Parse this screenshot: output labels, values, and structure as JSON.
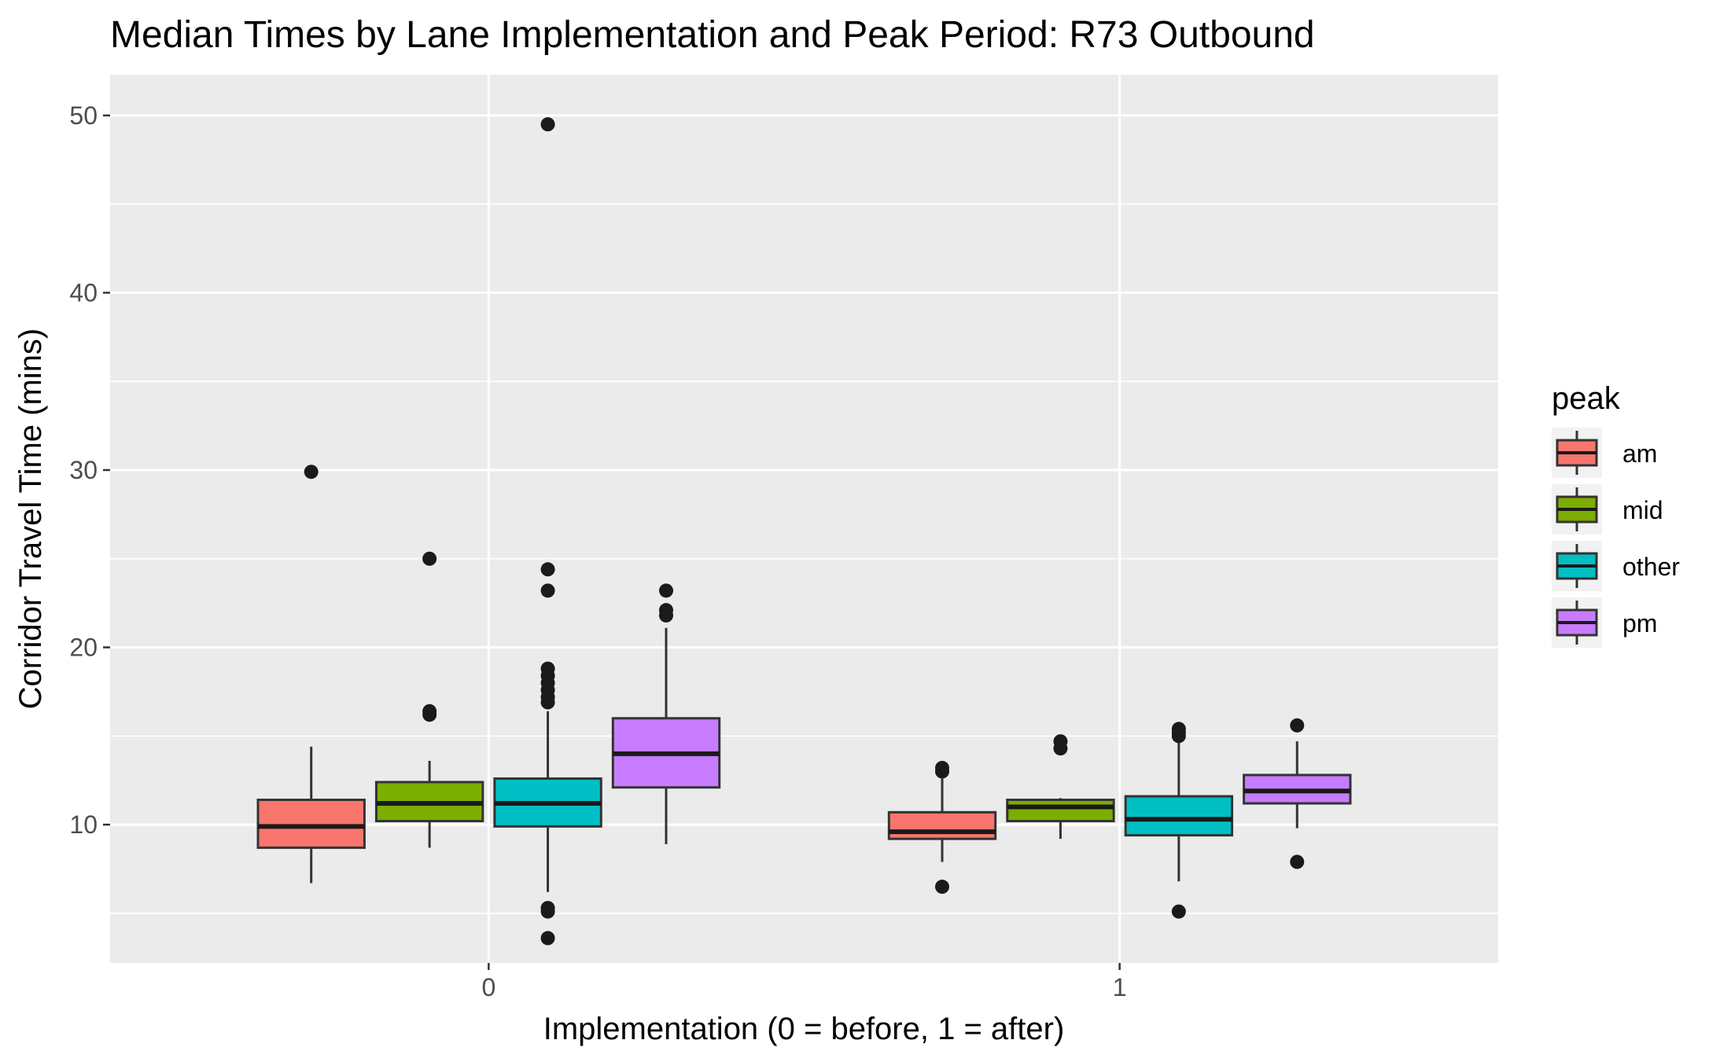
{
  "chart_data": {
    "type": "boxplot",
    "title": "Median Times by Lane Implementation and Peak Period: R73 Outbound",
    "xlabel": "Implementation (0 = before, 1 = after)",
    "ylabel": "Corridor Travel Time (mins)",
    "ylim": [
      2.2,
      52.3
    ],
    "y_ticks": [
      10,
      20,
      30,
      40,
      50
    ],
    "y_tick_labels": [
      "10",
      "20",
      "30",
      "40",
      "50"
    ],
    "categories": [
      "0",
      "1"
    ],
    "grid": true,
    "legend": {
      "title": "peak",
      "position": "right"
    },
    "series": [
      {
        "name": "am",
        "color": "#F8766D",
        "boxes": [
          {
            "category": "0",
            "whisker_low": 6.7,
            "q1": 8.7,
            "median": 9.9,
            "q3": 11.4,
            "whisker_high": 14.4,
            "outliers": [
              29.9
            ]
          },
          {
            "category": "1",
            "whisker_low": 7.9,
            "q1": 9.2,
            "median": 9.6,
            "q3": 10.7,
            "whisker_high": 12.6,
            "outliers": [
              13.0,
              13.2,
              6.5
            ]
          }
        ]
      },
      {
        "name": "mid",
        "color": "#7CAE00",
        "boxes": [
          {
            "category": "0",
            "whisker_low": 8.7,
            "q1": 10.2,
            "median": 11.2,
            "q3": 12.4,
            "whisker_high": 13.6,
            "outliers": [
              25.0,
              16.4,
              16.2
            ]
          },
          {
            "category": "1",
            "whisker_low": 9.2,
            "q1": 10.2,
            "median": 11.0,
            "q3": 11.4,
            "whisker_high": 11.5,
            "outliers": [
              14.7,
              14.3
            ]
          }
        ]
      },
      {
        "name": "other",
        "color": "#00BFC4",
        "boxes": [
          {
            "category": "0",
            "whisker_low": 6.2,
            "q1": 9.9,
            "median": 11.2,
            "q3": 12.6,
            "whisker_high": 16.4,
            "outliers": [
              49.5,
              24.4,
              23.2,
              18.8,
              18.4,
              18.0,
              17.6,
              17.2,
              16.9,
              5.3,
              5.1,
              3.6
            ]
          },
          {
            "category": "1",
            "whisker_low": 6.8,
            "q1": 9.4,
            "median": 10.3,
            "q3": 11.6,
            "whisker_high": 14.9,
            "outliers": [
              15.4,
              15.2,
              15.0,
              5.1
            ]
          }
        ]
      },
      {
        "name": "pm",
        "color": "#C77CFF",
        "boxes": [
          {
            "category": "0",
            "whisker_low": 8.9,
            "q1": 12.1,
            "median": 14.0,
            "q3": 16.0,
            "whisker_high": 21.1,
            "outliers": [
              23.2,
              22.1,
              21.8
            ]
          },
          {
            "category": "1",
            "whisker_low": 9.8,
            "q1": 11.2,
            "median": 11.9,
            "q3": 12.8,
            "whisker_high": 14.7,
            "outliers": [
              15.6,
              7.9
            ]
          }
        ]
      }
    ]
  }
}
